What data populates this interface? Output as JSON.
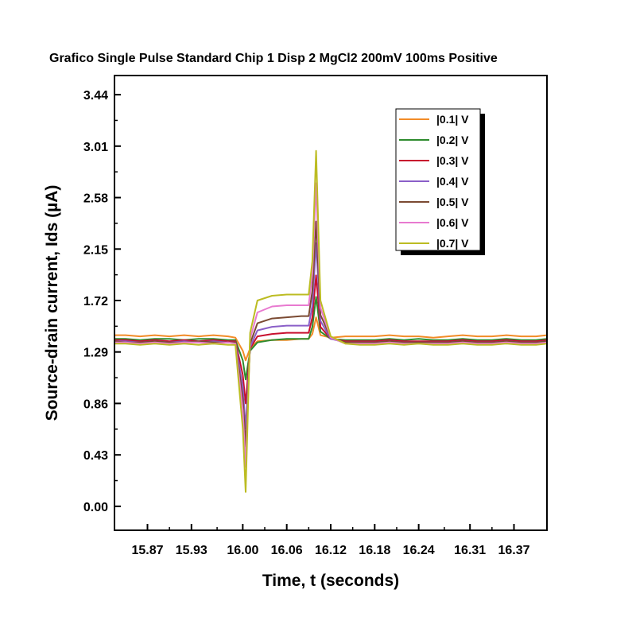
{
  "chart_data": {
    "type": "line",
    "title": "Grafico Single Pulse Standard Chip 1 Disp 2 MgCl2 200mV 100ms Positive",
    "xlabel": "Time, t (seconds)",
    "ylabel": "Source-drain current, Ids (µA)",
    "xlim": [
      15.825,
      16.415
    ],
    "ylim": [
      -0.2,
      3.6
    ],
    "x_ticks": [
      15.87,
      15.93,
      16.0,
      16.06,
      16.12,
      16.18,
      16.24,
      16.31,
      16.37
    ],
    "x_tick_labels": [
      "15.87",
      "15.93",
      "16.00",
      "16.06",
      "16.12",
      "16.18",
      "16.24",
      "16.31",
      "16.37"
    ],
    "y_ticks": [
      0.0,
      0.43,
      0.86,
      1.29,
      1.72,
      2.15,
      2.58,
      3.01,
      3.44
    ],
    "y_tick_labels": [
      "0.00",
      "0.43",
      "0.86",
      "1.29",
      "1.72",
      "2.15",
      "2.58",
      "3.01",
      "3.44"
    ],
    "grid": false,
    "legend_position": "top-right",
    "x": [
      15.825,
      15.84,
      15.86,
      15.88,
      15.9,
      15.92,
      15.94,
      15.96,
      15.98,
      15.99,
      16.0,
      16.004,
      16.01,
      16.02,
      16.04,
      16.06,
      16.08,
      16.09,
      16.095,
      16.1,
      16.106,
      16.12,
      16.14,
      16.16,
      16.18,
      16.2,
      16.22,
      16.24,
      16.26,
      16.28,
      16.3,
      16.32,
      16.34,
      16.36,
      16.38,
      16.4,
      16.415
    ],
    "series": [
      {
        "name": "|0.1| V",
        "color": "#f28c28",
        "values": [
          1.43,
          1.43,
          1.42,
          1.43,
          1.42,
          1.43,
          1.42,
          1.43,
          1.42,
          1.41,
          1.3,
          1.22,
          1.32,
          1.38,
          1.39,
          1.39,
          1.4,
          1.4,
          1.44,
          1.58,
          1.43,
          1.41,
          1.42,
          1.42,
          1.42,
          1.43,
          1.42,
          1.42,
          1.41,
          1.42,
          1.43,
          1.42,
          1.42,
          1.43,
          1.42,
          1.42,
          1.43
        ]
      },
      {
        "name": "|0.2| V",
        "color": "#2e8b2e",
        "values": [
          1.4,
          1.4,
          1.39,
          1.4,
          1.4,
          1.39,
          1.4,
          1.4,
          1.39,
          1.39,
          1.22,
          1.06,
          1.3,
          1.37,
          1.39,
          1.4,
          1.4,
          1.4,
          1.5,
          1.75,
          1.46,
          1.4,
          1.39,
          1.39,
          1.39,
          1.4,
          1.39,
          1.4,
          1.39,
          1.39,
          1.4,
          1.39,
          1.39,
          1.4,
          1.39,
          1.39,
          1.4
        ]
      },
      {
        "name": "|0.3| V",
        "color": "#c8102e",
        "values": [
          1.39,
          1.39,
          1.38,
          1.39,
          1.38,
          1.39,
          1.38,
          1.39,
          1.38,
          1.38,
          1.1,
          0.86,
          1.32,
          1.42,
          1.44,
          1.45,
          1.45,
          1.45,
          1.58,
          1.93,
          1.5,
          1.4,
          1.38,
          1.38,
          1.38,
          1.39,
          1.38,
          1.38,
          1.38,
          1.38,
          1.39,
          1.38,
          1.38,
          1.39,
          1.38,
          1.38,
          1.39
        ]
      },
      {
        "name": "|0.4| V",
        "color": "#8a5fc8",
        "values": [
          1.38,
          1.38,
          1.37,
          1.38,
          1.37,
          1.38,
          1.37,
          1.38,
          1.37,
          1.37,
          1.0,
          0.65,
          1.33,
          1.47,
          1.5,
          1.51,
          1.51,
          1.51,
          1.68,
          2.2,
          1.55,
          1.4,
          1.37,
          1.37,
          1.37,
          1.38,
          1.37,
          1.37,
          1.37,
          1.37,
          1.38,
          1.37,
          1.37,
          1.38,
          1.37,
          1.37,
          1.38
        ]
      },
      {
        "name": "|0.5| V",
        "color": "#7b4a32",
        "values": [
          1.38,
          1.37,
          1.37,
          1.38,
          1.37,
          1.37,
          1.38,
          1.37,
          1.37,
          1.37,
          0.9,
          0.5,
          1.36,
          1.53,
          1.57,
          1.58,
          1.59,
          1.59,
          1.8,
          2.38,
          1.6,
          1.41,
          1.37,
          1.37,
          1.37,
          1.38,
          1.37,
          1.37,
          1.37,
          1.37,
          1.38,
          1.37,
          1.37,
          1.38,
          1.37,
          1.37,
          1.38
        ]
      },
      {
        "name": "|0.6| V",
        "color": "#e87ad0",
        "values": [
          1.37,
          1.37,
          1.36,
          1.37,
          1.36,
          1.37,
          1.37,
          1.36,
          1.37,
          1.36,
          0.8,
          0.33,
          1.4,
          1.62,
          1.67,
          1.68,
          1.68,
          1.68,
          1.95,
          2.7,
          1.66,
          1.41,
          1.36,
          1.36,
          1.36,
          1.37,
          1.36,
          1.36,
          1.36,
          1.36,
          1.37,
          1.36,
          1.36,
          1.37,
          1.36,
          1.36,
          1.37
        ]
      },
      {
        "name": "|0.7| V",
        "color": "#bcbc22",
        "values": [
          1.36,
          1.36,
          1.35,
          1.36,
          1.35,
          1.36,
          1.35,
          1.36,
          1.35,
          1.35,
          0.65,
          0.12,
          1.45,
          1.72,
          1.76,
          1.77,
          1.77,
          1.77,
          2.05,
          2.97,
          1.72,
          1.42,
          1.36,
          1.35,
          1.35,
          1.36,
          1.35,
          1.36,
          1.35,
          1.35,
          1.36,
          1.35,
          1.35,
          1.36,
          1.35,
          1.35,
          1.36
        ]
      }
    ]
  }
}
